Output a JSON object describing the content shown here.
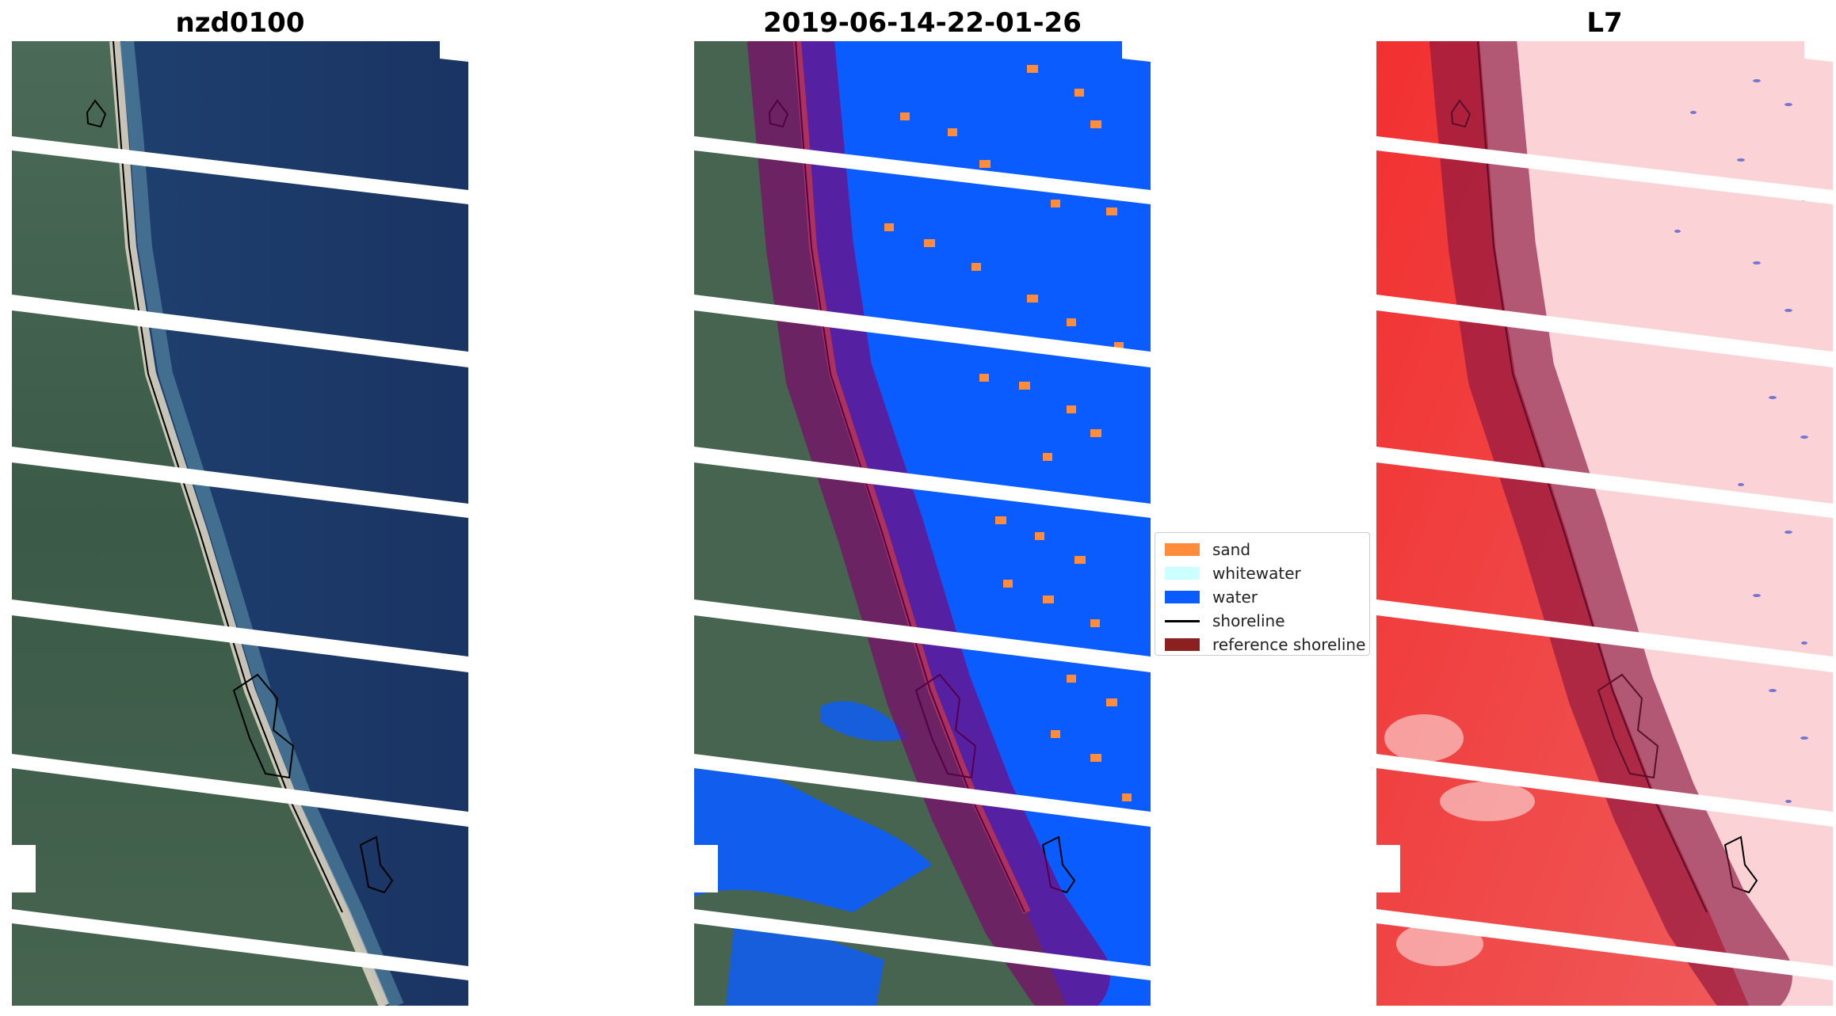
{
  "panels": [
    {
      "title": "nzd0100"
    },
    {
      "title": "2019-06-14-22-01-26"
    },
    {
      "title": "L7"
    }
  ],
  "legend": {
    "items": [
      {
        "label": "sand",
        "color": "#ff8c3a",
        "kind": "patch"
      },
      {
        "label": "whitewater",
        "color": "#ccffff",
        "kind": "patch"
      },
      {
        "label": "water",
        "color": "#0a5cff",
        "kind": "patch"
      },
      {
        "label": "shoreline",
        "color": "#000000",
        "kind": "line"
      },
      {
        "label": "reference shoreline",
        "color": "#8b2020",
        "kind": "patch"
      }
    ]
  },
  "colors": {
    "ocean": "#1d3866",
    "land": "#3d5c4a",
    "beach": "#d9d2c0",
    "sand": "#ff8c3a",
    "water": "#0a5cff",
    "buffer_overlay": "#800070",
    "index_land": "#f2322f",
    "index_ocean": "#fbd3d6",
    "gap_stripe": "#ffffff"
  }
}
